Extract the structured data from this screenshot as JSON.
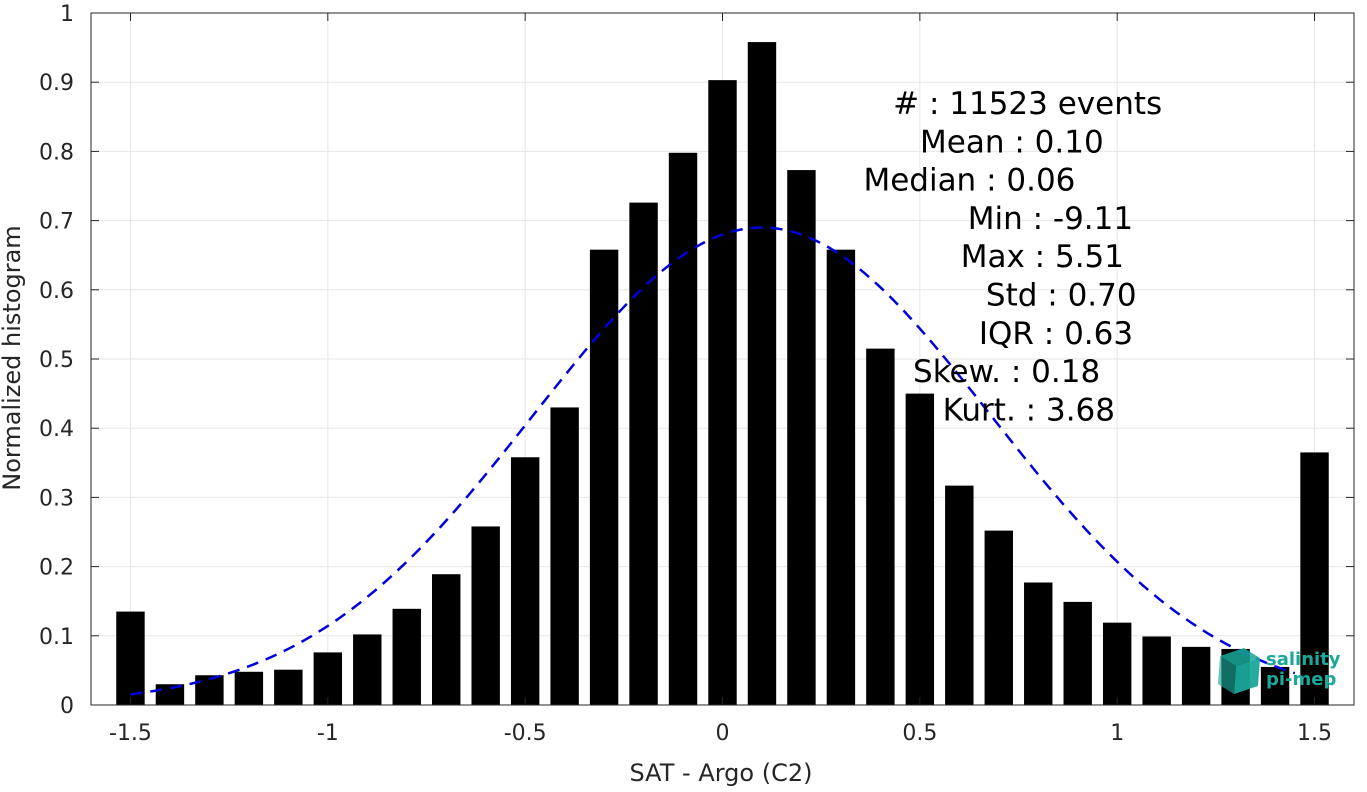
{
  "chart_data": {
    "type": "bar",
    "xlabel": "SAT - Argo (C2)",
    "ylabel": "Normalized histogram",
    "xlim": [
      -1.6,
      1.6
    ],
    "ylim": [
      0,
      1
    ],
    "xticks": [
      -1.5,
      -1,
      -0.5,
      0,
      0.5,
      1,
      1.5
    ],
    "xtick_labels": [
      "-1.5",
      "-1",
      "-0.5",
      "0",
      "0.5",
      "1",
      "1.5"
    ],
    "yticks": [
      0,
      0.1,
      0.2,
      0.3,
      0.4,
      0.5,
      0.6,
      0.7,
      0.8,
      0.9,
      1
    ],
    "ytick_labels": [
      "0",
      "0.1",
      "0.2",
      "0.3",
      "0.4",
      "0.5",
      "0.6",
      "0.7",
      "0.8",
      "0.9",
      "1"
    ],
    "grid": true,
    "bar_color": "#000000",
    "bin_width": 0.1,
    "bar_fraction": 0.72,
    "x": [
      -1.5,
      -1.4,
      -1.3,
      -1.2,
      -1.1,
      -1.0,
      -0.9,
      -0.8,
      -0.7,
      -0.6,
      -0.5,
      -0.4,
      -0.3,
      -0.2,
      -0.1,
      0.0,
      0.1,
      0.2,
      0.3,
      0.4,
      0.5,
      0.6,
      0.7,
      0.8,
      0.9,
      1.0,
      1.1,
      1.2,
      1.3,
      1.4,
      1.5
    ],
    "values": [
      0.135,
      0.03,
      0.043,
      0.048,
      0.051,
      0.076,
      0.102,
      0.139,
      0.189,
      0.258,
      0.358,
      0.43,
      0.658,
      0.726,
      0.798,
      0.903,
      0.958,
      0.773,
      0.658,
      0.515,
      0.45,
      0.317,
      0.252,
      0.177,
      0.149,
      0.119,
      0.099,
      0.084,
      0.081,
      0.055,
      0.365
    ],
    "fit_curve": {
      "style": "dashed",
      "color": "#0000dd",
      "mean": 0.1,
      "std": 0.58,
      "peak": 0.69,
      "x_range": [
        -1.5,
        1.45
      ]
    },
    "stats": [
      "#  : 11523 events",
      "Mean : 0.10",
      "Median : 0.06",
      "Min : -9.11",
      "Max : 5.51",
      "Std : 0.70",
      "IQR : 0.63",
      "Skew. : 0.18",
      "Kurt. : 3.68"
    ]
  },
  "logo": {
    "line1": "salinity",
    "line2": "pi-mep",
    "color": "#1aa89a",
    "icon_color": "#1aa89a",
    "icon_name": "salinity-cube-icon"
  }
}
